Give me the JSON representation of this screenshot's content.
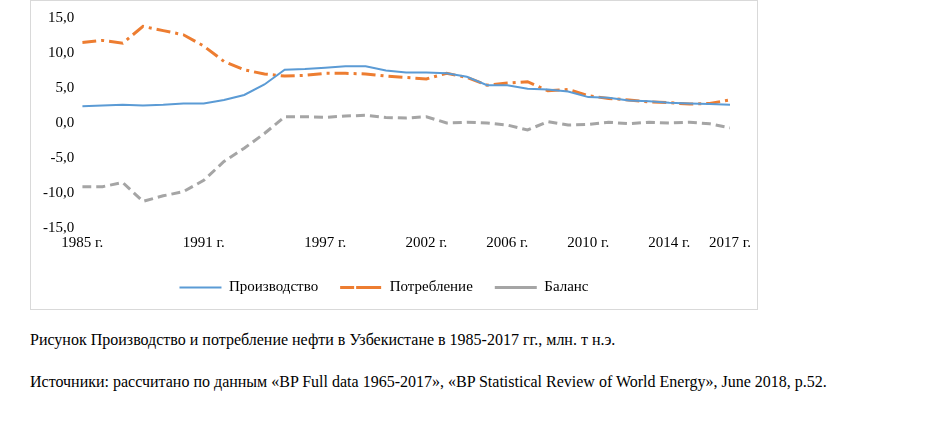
{
  "chart_data": {
    "type": "line",
    "categories": [
      "1985 г.",
      null,
      null,
      null,
      null,
      null,
      "1991 г.",
      null,
      null,
      null,
      null,
      null,
      "1997 г.",
      null,
      null,
      null,
      null,
      "2002 г.",
      null,
      null,
      null,
      "2006 г.",
      null,
      null,
      null,
      "2010 г.",
      null,
      null,
      null,
      "2014 г.",
      null,
      null,
      "2017 г."
    ],
    "series": [
      {
        "name": "Производство",
        "color": "#5b9bd5",
        "line_style": "solid",
        "values": [
          2.4,
          2.5,
          2.6,
          2.5,
          2.6,
          2.8,
          2.8,
          3.3,
          4.0,
          5.5,
          7.6,
          7.7,
          7.9,
          8.1,
          8.1,
          7.5,
          7.2,
          7.2,
          7.1,
          6.6,
          5.4,
          5.4,
          4.9,
          4.8,
          4.5,
          3.7,
          3.6,
          3.2,
          3.1,
          2.9,
          2.8,
          2.7,
          2.6
        ]
      },
      {
        "name": "Потребление",
        "color": "#ed7d31",
        "line_style": "dashdot",
        "values": [
          11.5,
          11.8,
          11.4,
          13.8,
          13.2,
          12.6,
          11.0,
          8.8,
          7.6,
          7.0,
          6.7,
          6.8,
          7.1,
          7.1,
          7.0,
          6.7,
          6.5,
          6.3,
          7.1,
          6.5,
          5.4,
          5.7,
          5.9,
          4.6,
          4.8,
          3.9,
          3.5,
          3.3,
          3.0,
          2.9,
          2.7,
          2.8,
          3.3
        ]
      },
      {
        "name": "Баланс",
        "color": "#a5a5a5",
        "line_style": "dashed",
        "values": [
          -9.1,
          -9.1,
          -8.5,
          -11.2,
          -10.4,
          -9.8,
          -8.2,
          -5.5,
          -3.6,
          -1.5,
          0.9,
          0.9,
          0.8,
          1.0,
          1.1,
          0.8,
          0.7,
          0.9,
          0.0,
          0.1,
          0.0,
          -0.3,
          -1.0,
          0.2,
          -0.3,
          -0.2,
          0.1,
          -0.1,
          0.1,
          0.0,
          0.1,
          -0.1,
          -0.7
        ]
      }
    ],
    "ylim": [
      -15,
      15
    ],
    "yticks": [
      {
        "value": -15,
        "label": "-15,0"
      },
      {
        "value": -10,
        "label": "-10,0"
      },
      {
        "value": -5,
        "label": "-5,0"
      },
      {
        "value": 0,
        "label": "0,0"
      },
      {
        "value": 5,
        "label": "5,0"
      },
      {
        "value": 10,
        "label": "10,0"
      },
      {
        "value": 15,
        "label": "15,0"
      }
    ],
    "grid": false,
    "legend": "bottom",
    "marker": "none"
  },
  "caption": "Рисунок Производство и потребление нефти в Узбекистане в 1985-2017 гг., млн. т н.э.",
  "source": "Источники: рассчитано по данным «BP Full data 1965-2017», «BP Statistical Review of World Energy», June 2018, p.52."
}
